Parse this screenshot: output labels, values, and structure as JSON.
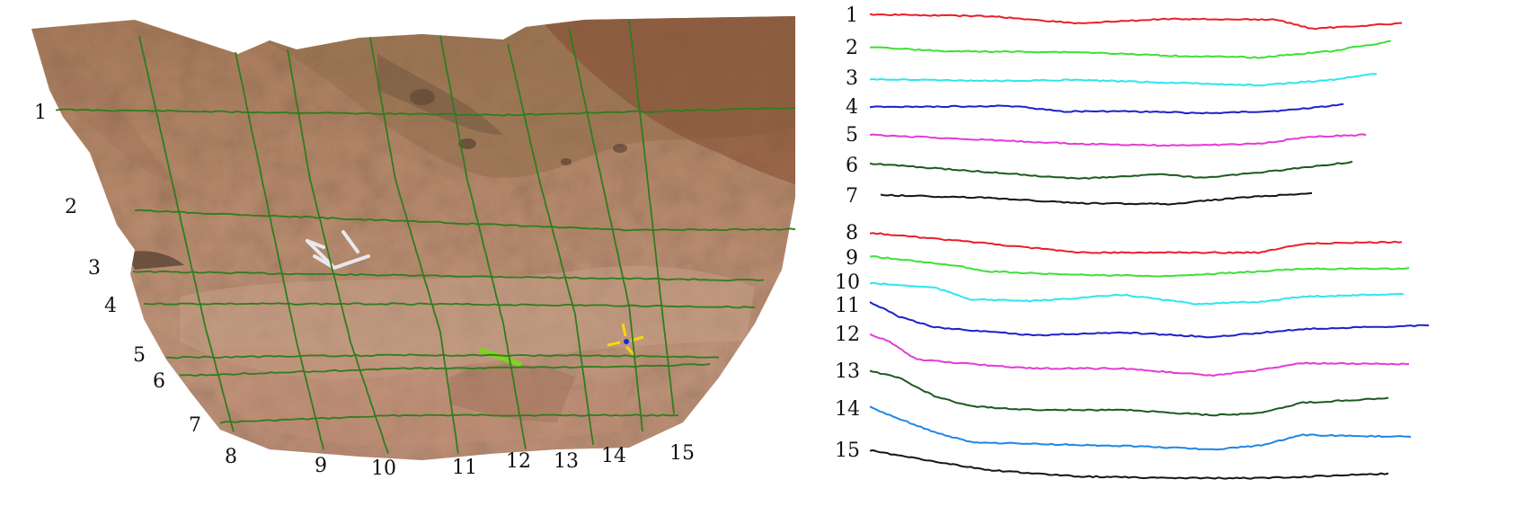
{
  "left_panel": {
    "row_labels": [
      "1",
      "2",
      "3",
      "4",
      "5",
      "6",
      "7"
    ],
    "column_labels": [
      "8",
      "9",
      "10",
      "11",
      "12",
      "13",
      "14",
      "15"
    ],
    "grid_color": "#2e7d1e"
  },
  "right_panel": {
    "profiles": [
      {
        "label": "1",
        "color": "#e8202a"
      },
      {
        "label": "2",
        "color": "#3ee03a"
      },
      {
        "label": "3",
        "color": "#2de6ef"
      },
      {
        "label": "4",
        "color": "#1c22c8"
      },
      {
        "label": "5",
        "color": "#e53ad8"
      },
      {
        "label": "6",
        "color": "#1e5a1e"
      },
      {
        "label": "7",
        "color": "#151515"
      },
      {
        "label": "8",
        "color": "#e8202a"
      },
      {
        "label": "9",
        "color": "#3ee03a"
      },
      {
        "label": "10",
        "color": "#2de6ef"
      },
      {
        "label": "11",
        "color": "#1c22c8"
      },
      {
        "label": "12",
        "color": "#e53ad8"
      },
      {
        "label": "13",
        "color": "#1e5a1e"
      },
      {
        "label": "14",
        "color": "#1f86e6"
      },
      {
        "label": "15",
        "color": "#151515"
      }
    ]
  }
}
